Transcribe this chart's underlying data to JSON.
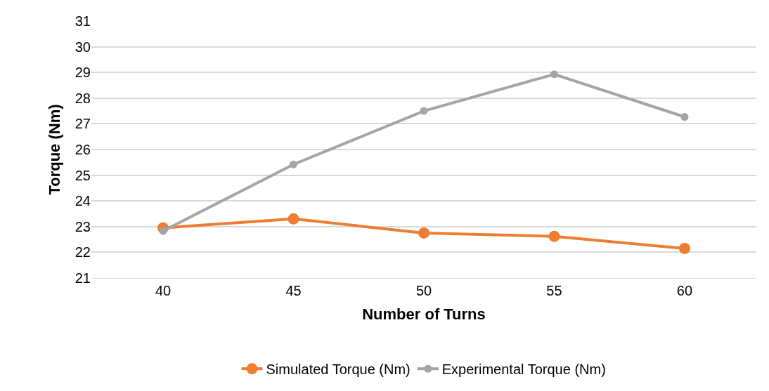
{
  "chart_data": {
    "type": "line",
    "xlabel": "Number of Turns",
    "ylabel": "Torque (Nm)",
    "categories": [
      "40",
      "45",
      "50",
      "55",
      "60"
    ],
    "series": [
      {
        "name": "Simulated Torque (Nm)",
        "color": "#ed7d31",
        "values": [
          22.95,
          23.3,
          22.75,
          22.62,
          22.15
        ]
      },
      {
        "name": "Experimental Torque (Nm)",
        "color": "#a5a5a5",
        "values": [
          22.83,
          25.42,
          27.5,
          28.93,
          27.27
        ]
      }
    ],
    "ylim": [
      21,
      31
    ],
    "yticks": [
      21,
      22,
      23,
      24,
      25,
      26,
      27,
      28,
      29,
      30,
      31
    ],
    "grid": "y",
    "legend": "bottom",
    "marker": "circle",
    "line_style": "solid"
  }
}
